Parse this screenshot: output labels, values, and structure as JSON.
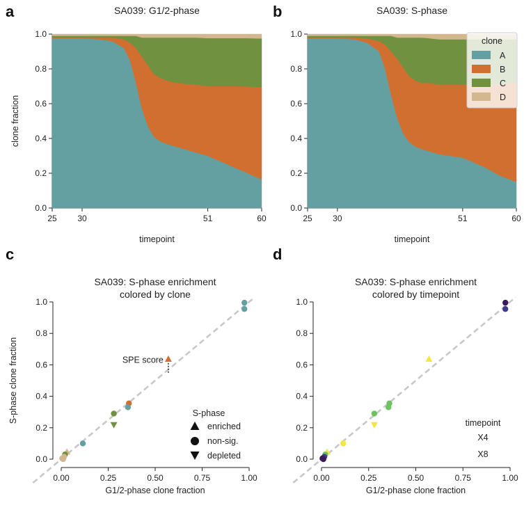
{
  "chart_data": [
    {
      "id": "a",
      "type": "area",
      "panel_letter": "a",
      "title": "SA039: G1/2-phase",
      "xlabel": "timepoint",
      "ylabel": "clone fraction",
      "xlim": [
        25,
        60
      ],
      "ylim": [
        0,
        1
      ],
      "xticks": [
        25,
        30,
        51,
        60
      ],
      "yticks": [
        0.0,
        0.2,
        0.4,
        0.6,
        0.8,
        1.0
      ],
      "x": [
        25,
        30,
        33,
        35,
        37,
        38,
        39,
        40,
        41,
        42,
        43,
        44,
        45,
        47,
        49,
        51,
        53,
        55,
        57,
        60
      ],
      "series": [
        {
          "name": "A",
          "color": "#64a0a2",
          "values": [
            0.975,
            0.975,
            0.97,
            0.96,
            0.92,
            0.85,
            0.72,
            0.57,
            0.47,
            0.41,
            0.385,
            0.37,
            0.36,
            0.34,
            0.32,
            0.3,
            0.27,
            0.24,
            0.21,
            0.165
          ]
        },
        {
          "name": "B",
          "color": "#d06f2f",
          "values": [
            0.005,
            0.005,
            0.01,
            0.02,
            0.05,
            0.1,
            0.2,
            0.3,
            0.35,
            0.36,
            0.365,
            0.365,
            0.365,
            0.375,
            0.39,
            0.4,
            0.43,
            0.46,
            0.49,
            0.53
          ]
        },
        {
          "name": "C",
          "color": "#6f9140",
          "values": [
            0.01,
            0.01,
            0.01,
            0.01,
            0.02,
            0.04,
            0.07,
            0.11,
            0.16,
            0.21,
            0.23,
            0.245,
            0.255,
            0.265,
            0.27,
            0.277,
            0.277,
            0.277,
            0.277,
            0.28
          ]
        },
        {
          "name": "D",
          "color": "#d3b78e",
          "values": [
            0.01,
            0.01,
            0.01,
            0.01,
            0.01,
            0.01,
            0.01,
            0.02,
            0.02,
            0.02,
            0.02,
            0.02,
            0.02,
            0.02,
            0.02,
            0.023,
            0.023,
            0.023,
            0.023,
            0.025
          ]
        }
      ]
    },
    {
      "id": "b",
      "type": "area",
      "panel_letter": "b",
      "title": "SA039: S-phase",
      "xlabel": "timepoint",
      "ylabel": "",
      "xlim": [
        25,
        60
      ],
      "ylim": [
        0,
        1
      ],
      "xticks": [
        25,
        30,
        51,
        60
      ],
      "yticks": [
        0.0,
        0.2,
        0.4,
        0.6,
        0.8,
        1.0
      ],
      "legend": {
        "title": "clone",
        "position": "top-right"
      },
      "x": [
        25,
        30,
        33,
        35,
        37,
        38,
        39,
        40,
        41,
        42,
        43,
        44,
        45,
        47,
        49,
        51,
        53,
        55,
        57,
        60
      ],
      "series": [
        {
          "name": "A",
          "color": "#64a0a2",
          "values": [
            0.975,
            0.975,
            0.97,
            0.95,
            0.9,
            0.8,
            0.65,
            0.52,
            0.43,
            0.38,
            0.355,
            0.34,
            0.33,
            0.31,
            0.3,
            0.29,
            0.26,
            0.23,
            0.19,
            0.15
          ]
        },
        {
          "name": "B",
          "color": "#d06f2f",
          "values": [
            0.005,
            0.005,
            0.01,
            0.025,
            0.06,
            0.14,
            0.25,
            0.34,
            0.38,
            0.38,
            0.38,
            0.38,
            0.39,
            0.4,
            0.41,
            0.42,
            0.45,
            0.48,
            0.52,
            0.57
          ]
        },
        {
          "name": "C",
          "color": "#6f9140",
          "values": [
            0.01,
            0.01,
            0.01,
            0.015,
            0.03,
            0.05,
            0.09,
            0.12,
            0.17,
            0.22,
            0.245,
            0.26,
            0.258,
            0.26,
            0.26,
            0.26,
            0.26,
            0.26,
            0.26,
            0.25
          ]
        },
        {
          "name": "D",
          "color": "#d3b78e",
          "values": [
            0.01,
            0.01,
            0.01,
            0.01,
            0.01,
            0.01,
            0.01,
            0.02,
            0.02,
            0.02,
            0.02,
            0.02,
            0.022,
            0.03,
            0.03,
            0.03,
            0.03,
            0.03,
            0.03,
            0.03
          ]
        }
      ]
    },
    {
      "id": "c",
      "type": "scatter",
      "panel_letter": "c",
      "title": "SA039: S-phase enrichment",
      "subtitle": "colored by clone",
      "xlabel": "G1/2-phase clone fraction",
      "ylabel": "S-phase clone fraction",
      "xlim": [
        0,
        1
      ],
      "ylim": [
        0,
        1
      ],
      "xticks": [
        0.0,
        0.25,
        0.5,
        0.75,
        1.0
      ],
      "xtick_labels": [
        "0.00",
        "0.25",
        "0.50",
        "0.75",
        "1.00"
      ],
      "yticks": [
        0.0,
        0.2,
        0.4,
        0.6,
        0.8,
        1.0
      ],
      "diagonal": true,
      "annotation": {
        "text": "SPE score",
        "x": 0.57,
        "y_from": 0.585,
        "y_to": 0.63
      },
      "legend": {
        "title": "S-phase",
        "entries": [
          "enriched",
          "non-sig.",
          "depleted"
        ],
        "position": "lower-right"
      },
      "points": [
        {
          "x": 0.975,
          "y": 0.995,
          "marker": "circle",
          "color": "#64a0a2"
        },
        {
          "x": 0.975,
          "y": 0.955,
          "marker": "circle",
          "color": "#64a0a2"
        },
        {
          "x": 0.57,
          "y": 0.635,
          "marker": "triangle-up",
          "color": "#d06f2f"
        },
        {
          "x": 0.36,
          "y": 0.355,
          "marker": "circle",
          "color": "#d06f2f"
        },
        {
          "x": 0.355,
          "y": 0.33,
          "marker": "circle",
          "color": "#64a0a2"
        },
        {
          "x": 0.28,
          "y": 0.29,
          "marker": "circle",
          "color": "#6f9140"
        },
        {
          "x": 0.28,
          "y": 0.22,
          "marker": "triangle-down",
          "color": "#6f9140"
        },
        {
          "x": 0.115,
          "y": 0.1,
          "marker": "circle",
          "color": "#64a0a2"
        },
        {
          "x": 0.03,
          "y": 0.045,
          "marker": "triangle-up",
          "color": "#d3b78e"
        },
        {
          "x": 0.02,
          "y": 0.03,
          "marker": "circle",
          "color": "#6f9140"
        },
        {
          "x": 0.015,
          "y": 0.015,
          "marker": "circle",
          "color": "#d3b78e"
        },
        {
          "x": 0.005,
          "y": 0.005,
          "marker": "circle",
          "color": "#d3b78e"
        },
        {
          "x": 0.01,
          "y": 0.0,
          "marker": "circle",
          "color": "#d3b78e"
        }
      ]
    },
    {
      "id": "d",
      "type": "scatter",
      "panel_letter": "d",
      "title": "SA039: S-phase enrichment",
      "subtitle": "colored by timepoint",
      "xlabel": "G1/2-phase clone fraction",
      "ylabel": "",
      "xlim": [
        0,
        1
      ],
      "ylim": [
        0,
        1
      ],
      "xticks": [
        0.0,
        0.25,
        0.5,
        0.75,
        1.0
      ],
      "xtick_labels": [
        "0.00",
        "0.25",
        "0.50",
        "0.75",
        "1.00"
      ],
      "yticks": [
        0.0,
        0.2,
        0.4,
        0.6,
        0.8,
        1.0
      ],
      "diagonal": true,
      "legend": {
        "title": "timepoint",
        "entries": [
          "X4",
          "X8"
        ],
        "position": "lower-right"
      },
      "points": [
        {
          "x": 0.975,
          "y": 0.995,
          "marker": "circle",
          "color": "#3b1a5a"
        },
        {
          "x": 0.975,
          "y": 0.955,
          "marker": "circle",
          "color": "#3e3a8c"
        },
        {
          "x": 0.57,
          "y": 0.635,
          "marker": "triangle-up",
          "color": "#f3e646"
        },
        {
          "x": 0.36,
          "y": 0.355,
          "marker": "circle",
          "color": "#6cc35f"
        },
        {
          "x": 0.355,
          "y": 0.33,
          "marker": "circle",
          "color": "#6cc35f"
        },
        {
          "x": 0.28,
          "y": 0.29,
          "marker": "circle",
          "color": "#6cc35f"
        },
        {
          "x": 0.28,
          "y": 0.22,
          "marker": "triangle-down",
          "color": "#f3e646"
        },
        {
          "x": 0.115,
          "y": 0.1,
          "marker": "circle",
          "color": "#f3e646"
        },
        {
          "x": 0.03,
          "y": 0.045,
          "marker": "triangle-up",
          "color": "#f3e646"
        },
        {
          "x": 0.02,
          "y": 0.03,
          "marker": "circle",
          "color": "#6cc35f"
        },
        {
          "x": 0.015,
          "y": 0.015,
          "marker": "circle",
          "color": "#3e3a8c"
        },
        {
          "x": 0.005,
          "y": 0.005,
          "marker": "circle",
          "color": "#3b1a5a"
        },
        {
          "x": 0.01,
          "y": 0.0,
          "marker": "circle",
          "color": "#3b1a5a"
        }
      ]
    }
  ]
}
